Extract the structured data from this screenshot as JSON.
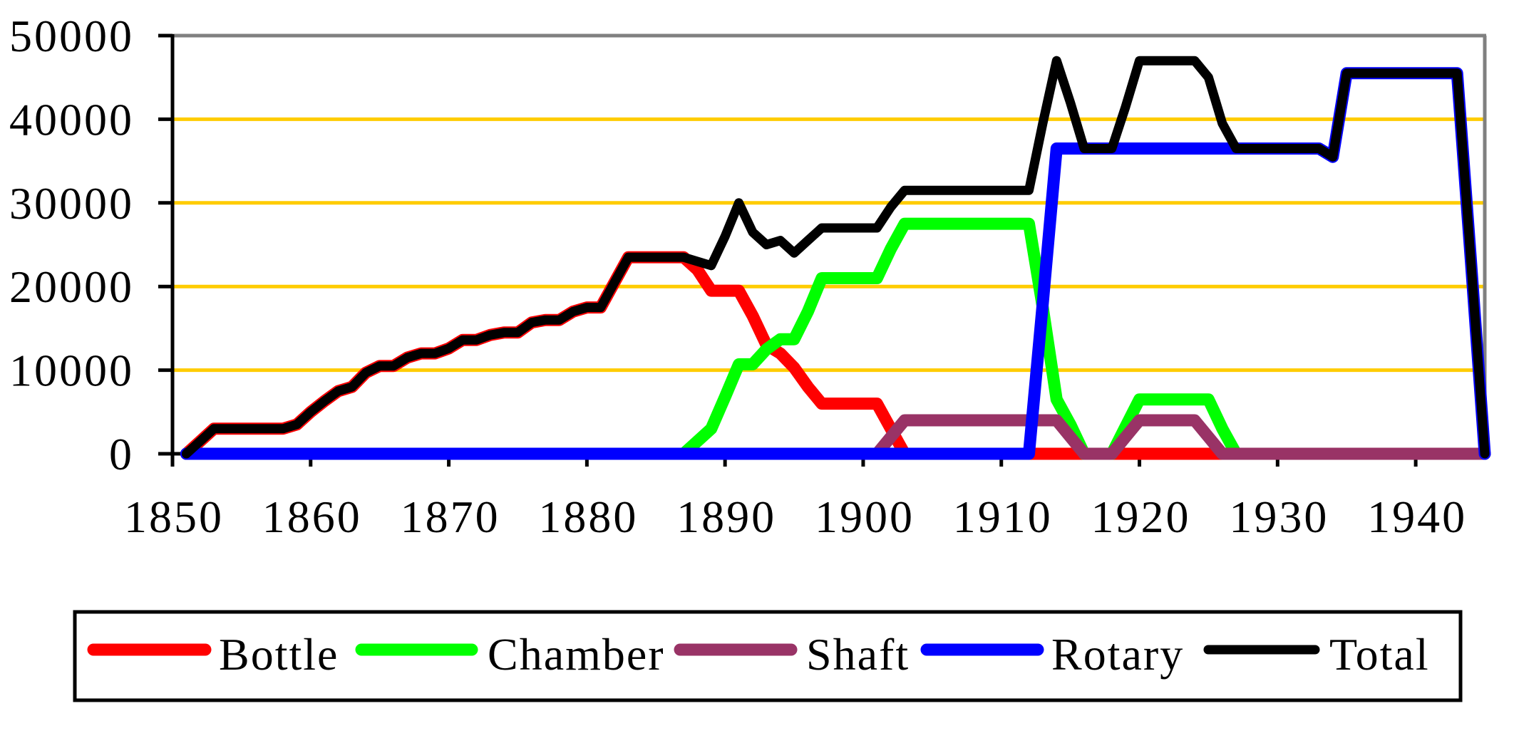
{
  "chart_data": {
    "type": "line",
    "title": "",
    "xlabel": "",
    "ylabel": "",
    "x_start": 1851,
    "x_end": 1945,
    "xlim": [
      1850,
      1945
    ],
    "ylim": [
      0,
      50000
    ],
    "x_ticks": [
      1850,
      1860,
      1870,
      1880,
      1890,
      1900,
      1910,
      1920,
      1930,
      1940
    ],
    "x_tick_labels": [
      "1850",
      "1860",
      "1870",
      "1880",
      "1890",
      "1900",
      "1910",
      "1920",
      "1930",
      "1940"
    ],
    "y_ticks": [
      0,
      10000,
      20000,
      30000,
      40000,
      50000
    ],
    "y_tick_labels": [
      "0",
      "10000",
      "20000",
      "30000",
      "40000",
      "50000"
    ],
    "grid": {
      "horizontal": true,
      "vertical": false,
      "color": "#FFCC00"
    },
    "legend_position": "bottom",
    "series": [
      {
        "name": "Bottle",
        "color": "#FF0000",
        "values": [
          0,
          1500,
          3000,
          3000,
          3000,
          3000,
          3000,
          3000,
          3500,
          5000,
          6300,
          7500,
          8000,
          9700,
          10500,
          10500,
          11500,
          12000,
          12000,
          12600,
          13600,
          13600,
          14200,
          14500,
          14500,
          15700,
          16000,
          16000,
          17000,
          17500,
          17500,
          20500,
          23500,
          23500,
          23500,
          23500,
          23500,
          22000,
          19500,
          19500,
          19500,
          16500,
          13000,
          12000,
          10300,
          8000,
          6000,
          6000,
          6000,
          6000,
          6000,
          3000,
          0,
          0,
          0,
          0,
          0,
          0,
          0,
          0,
          0,
          0,
          0,
          0,
          0,
          0,
          0,
          0,
          0,
          0,
          0,
          0,
          0,
          0,
          0,
          0,
          0,
          0,
          0,
          0,
          0,
          0,
          0,
          0,
          0,
          0,
          0,
          0,
          0,
          0,
          0,
          0,
          0,
          0,
          0
        ]
      },
      {
        "name": "Chamber",
        "color": "#00FF00",
        "values": [
          0,
          0,
          0,
          0,
          0,
          0,
          0,
          0,
          0,
          0,
          0,
          0,
          0,
          0,
          0,
          0,
          0,
          0,
          0,
          0,
          0,
          0,
          0,
          0,
          0,
          0,
          0,
          0,
          0,
          0,
          0,
          0,
          0,
          0,
          0,
          0,
          0,
          1500,
          3000,
          6800,
          10700,
          10700,
          12500,
          13700,
          13700,
          17000,
          21000,
          21000,
          21000,
          21000,
          21000,
          24500,
          27500,
          27500,
          27500,
          27500,
          27500,
          27500,
          27500,
          27500,
          27500,
          27500,
          17500,
          6500,
          3500,
          0,
          0,
          0,
          3250,
          6500,
          6500,
          6500,
          6500,
          6500,
          6500,
          3000,
          0,
          0,
          0,
          0,
          0,
          0,
          0,
          0,
          0,
          0,
          0,
          0,
          0,
          0,
          0,
          0,
          0,
          0,
          0
        ]
      },
      {
        "name": "Shaft",
        "color": "#993366",
        "values": [
          0,
          0,
          0,
          0,
          0,
          0,
          0,
          0,
          0,
          0,
          0,
          0,
          0,
          0,
          0,
          0,
          0,
          0,
          0,
          0,
          0,
          0,
          0,
          0,
          0,
          0,
          0,
          0,
          0,
          0,
          0,
          0,
          0,
          0,
          0,
          0,
          0,
          0,
          0,
          0,
          0,
          0,
          0,
          0,
          0,
          0,
          0,
          0,
          0,
          0,
          0,
          2000,
          4000,
          4000,
          4000,
          4000,
          4000,
          4000,
          4000,
          4000,
          4000,
          4000,
          4000,
          4000,
          2000,
          0,
          0,
          0,
          2000,
          4000,
          4000,
          4000,
          4000,
          4000,
          2000,
          0,
          0,
          0,
          0,
          0,
          0,
          0,
          0,
          0,
          0,
          0,
          0,
          0,
          0,
          0,
          0,
          0,
          0,
          0,
          0
        ]
      },
      {
        "name": "Rotary",
        "color": "#0000FF",
        "values": [
          0,
          0,
          0,
          0,
          0,
          0,
          0,
          0,
          0,
          0,
          0,
          0,
          0,
          0,
          0,
          0,
          0,
          0,
          0,
          0,
          0,
          0,
          0,
          0,
          0,
          0,
          0,
          0,
          0,
          0,
          0,
          0,
          0,
          0,
          0,
          0,
          0,
          0,
          0,
          0,
          0,
          0,
          0,
          0,
          0,
          0,
          0,
          0,
          0,
          0,
          0,
          0,
          0,
          0,
          0,
          0,
          0,
          0,
          0,
          0,
          0,
          0,
          18000,
          36500,
          36500,
          36500,
          36500,
          36500,
          36500,
          36500,
          36500,
          36500,
          36500,
          36500,
          36500,
          36500,
          36500,
          36500,
          36500,
          36500,
          36500,
          36500,
          36500,
          35500,
          45500,
          45500,
          45500,
          45500,
          45500,
          45500,
          45500,
          45500,
          45500,
          23000,
          0
        ]
      },
      {
        "name": "Total",
        "color": "#000000",
        "values": [
          0,
          1500,
          3000,
          3000,
          3000,
          3000,
          3000,
          3000,
          3500,
          5000,
          6300,
          7500,
          8000,
          9700,
          10500,
          10500,
          11500,
          12000,
          12000,
          12600,
          13600,
          13600,
          14200,
          14500,
          14500,
          15700,
          16000,
          16000,
          17000,
          17500,
          17500,
          20500,
          23500,
          23500,
          23500,
          23500,
          23500,
          23000,
          22500,
          26000,
          30000,
          26500,
          25000,
          25500,
          24000,
          25500,
          27000,
          27000,
          27000,
          27000,
          27000,
          29500,
          31500,
          31500,
          31500,
          31500,
          31500,
          31500,
          31500,
          31500,
          31500,
          31500,
          39500,
          47000,
          42000,
          36500,
          36500,
          36500,
          41500,
          47000,
          47000,
          47000,
          47000,
          47000,
          45000,
          39500,
          36500,
          36500,
          36500,
          36500,
          36500,
          36500,
          36500,
          35500,
          45500,
          45500,
          45500,
          45500,
          45500,
          45500,
          45500,
          45500,
          45500,
          23000,
          0
        ]
      }
    ]
  },
  "legend": {
    "items": [
      {
        "label": "Bottle",
        "color": "#FF0000"
      },
      {
        "label": "Chamber",
        "color": "#00FF00"
      },
      {
        "label": "Shaft",
        "color": "#993366"
      },
      {
        "label": "Rotary",
        "color": "#0000FF"
      },
      {
        "label": "Total",
        "color": "#000000"
      }
    ]
  }
}
